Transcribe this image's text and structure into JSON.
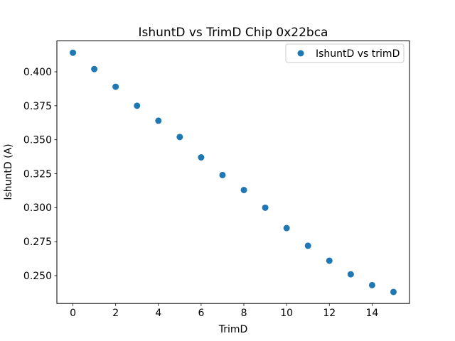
{
  "chart_data": {
    "type": "scatter",
    "title": "IshuntD vs TrimD Chip 0x22bca",
    "xlabel": "TrimD",
    "ylabel": "IshuntD (A)",
    "legend": {
      "label": "IshuntD vs trimD",
      "position": "upper right",
      "marker": "dot-icon"
    },
    "x": [
      0,
      1,
      2,
      3,
      4,
      5,
      6,
      7,
      8,
      9,
      10,
      11,
      12,
      13,
      14,
      15
    ],
    "y": [
      0.414,
      0.402,
      0.389,
      0.375,
      0.364,
      0.352,
      0.337,
      0.324,
      0.313,
      0.3,
      0.285,
      0.272,
      0.261,
      0.251,
      0.243,
      0.238
    ],
    "xlim": [
      -0.75,
      15.75
    ],
    "ylim": [
      0.2295,
      0.4227
    ],
    "xticks": [
      "0",
      "2",
      "4",
      "6",
      "8",
      "10",
      "12",
      "14"
    ],
    "yticks": [
      "0.250",
      "0.275",
      "0.300",
      "0.325",
      "0.350",
      "0.375",
      "0.400"
    ],
    "grid": false,
    "colors": {
      "marker": "#1f77b4",
      "spine": "#000000",
      "legend_border": "#cccccc",
      "background": "#ffffff"
    }
  }
}
